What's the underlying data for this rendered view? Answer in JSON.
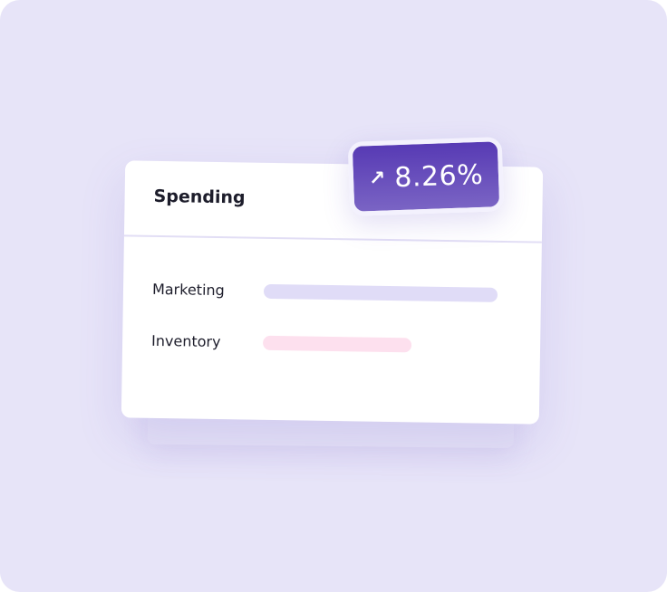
{
  "card": {
    "title": "Spending",
    "rows": [
      {
        "label": "Marketing",
        "bar_color": "#e0dcf7"
      },
      {
        "label": "Inventory",
        "bar_color": "#fde0ee"
      }
    ]
  },
  "badge": {
    "icon": "arrow-up-right-icon",
    "arrow": "↗",
    "value": "8.26%",
    "colors": [
      "#573ab4",
      "#7a64c4"
    ]
  },
  "background_color": "#e7e4f8"
}
